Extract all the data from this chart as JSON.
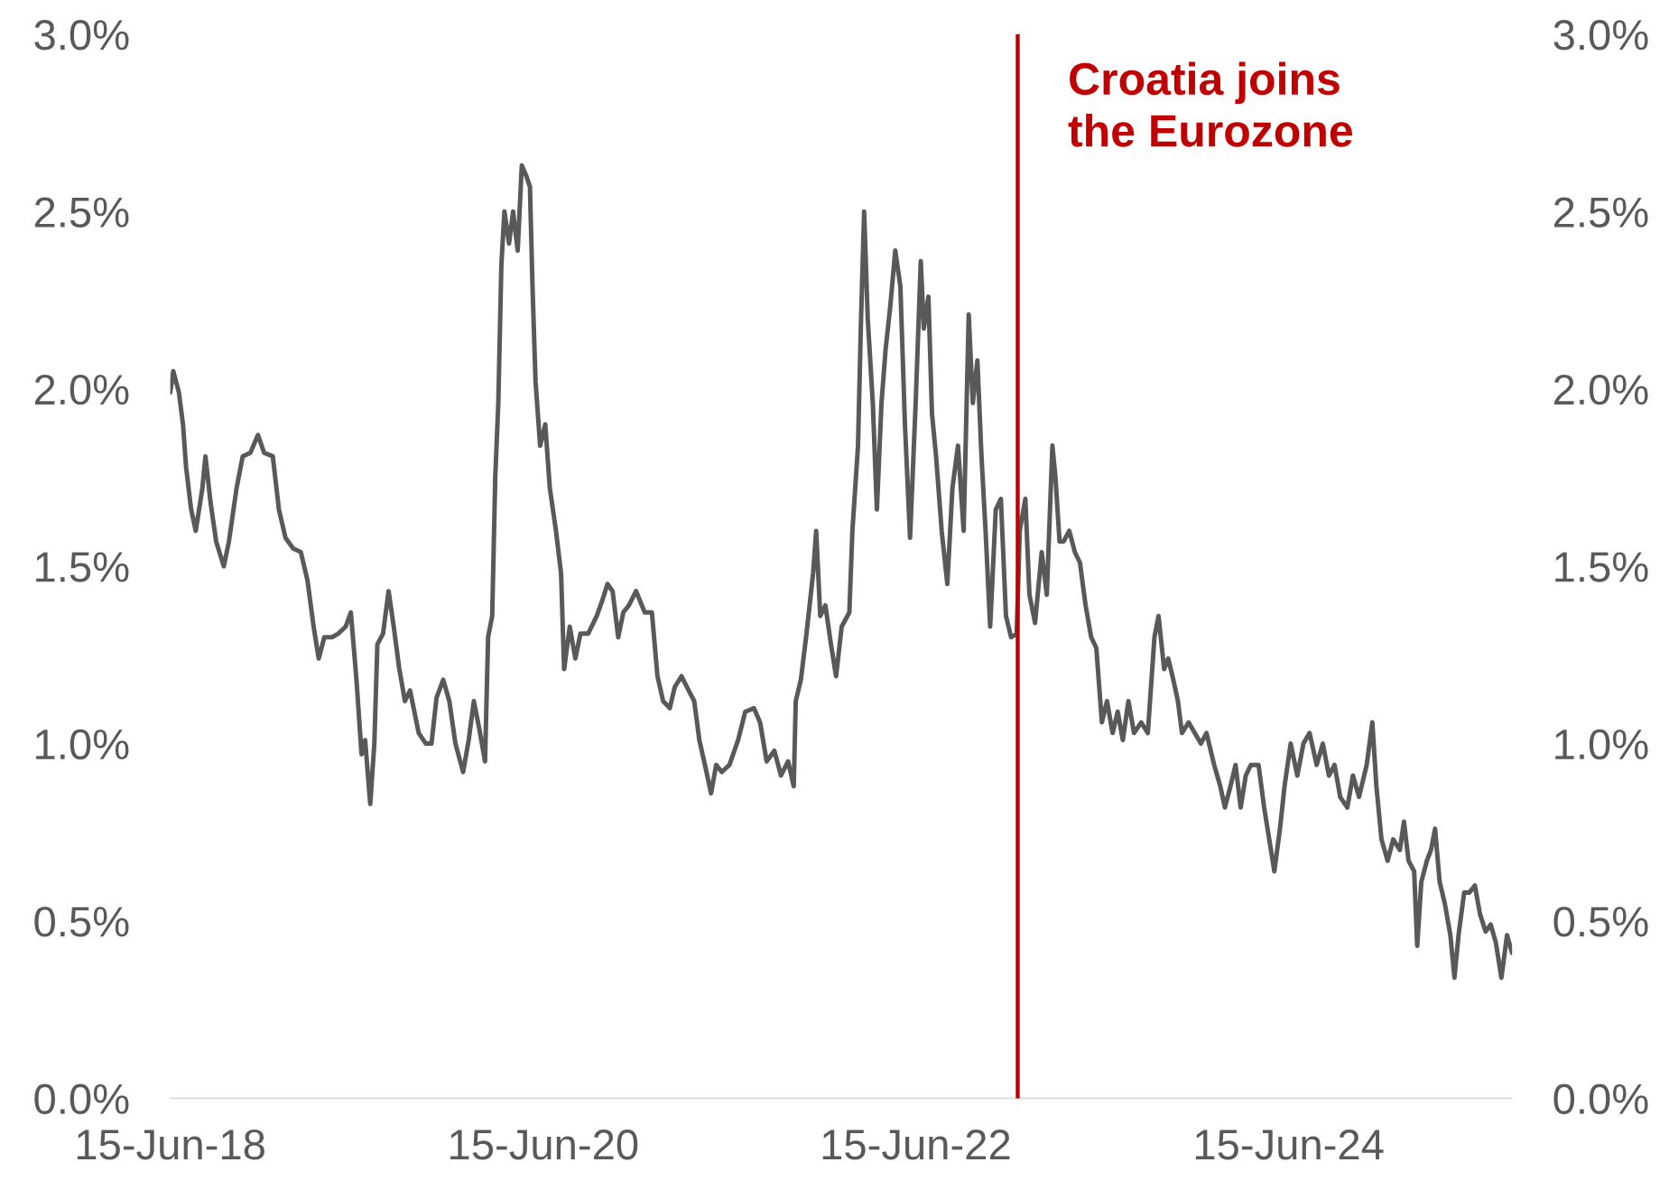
{
  "chart_data": {
    "type": "line",
    "x": [
      "2018-06-15",
      "2018-06-21",
      "2018-07-02",
      "2018-07-10",
      "2018-07-16",
      "2018-07-26",
      "2018-08-04",
      "2018-08-17",
      "2018-08-23",
      "2018-09-02",
      "2018-09-13",
      "2018-09-28",
      "2018-10-08",
      "2018-10-23",
      "2018-11-04",
      "2018-11-19",
      "2018-12-04",
      "2018-12-16",
      "2019-01-02",
      "2019-01-14",
      "2019-01-27",
      "2019-02-11",
      "2019-02-26",
      "2019-03-11",
      "2019-03-23",
      "2019-04-02",
      "2019-04-13",
      "2019-04-28",
      "2019-05-10",
      "2019-05-25",
      "2019-06-04",
      "2019-06-15",
      "2019-06-25",
      "2019-07-02",
      "2019-07-12",
      "2019-07-20",
      "2019-07-26",
      "2019-08-06",
      "2019-08-17",
      "2019-08-27",
      "2019-09-07",
      "2019-09-18",
      "2019-09-28",
      "2019-10-15",
      "2019-10-29",
      "2019-11-09",
      "2019-11-19",
      "2019-12-02",
      "2019-12-14",
      "2019-12-26",
      "2020-01-10",
      "2020-01-21",
      "2020-01-31",
      "2020-02-11",
      "2020-02-22",
      "2020-02-28",
      "2020-03-07",
      "2020-03-13",
      "2020-03-19",
      "2020-03-25",
      "2020-03-31",
      "2020-04-09",
      "2020-04-17",
      "2020-04-26",
      "2020-05-04",
      "2020-05-13",
      "2020-05-20",
      "2020-05-25",
      "2020-05-31",
      "2020-06-09",
      "2020-06-19",
      "2020-06-28",
      "2020-07-10",
      "2020-07-20",
      "2020-07-26",
      "2020-08-06",
      "2020-08-17",
      "2020-08-27",
      "2020-09-11",
      "2020-09-28",
      "2020-10-08",
      "2020-10-19",
      "2020-10-29",
      "2020-11-09",
      "2020-11-19",
      "2020-11-30",
      "2020-12-14",
      "2020-12-31",
      "2021-01-14",
      "2021-01-25",
      "2021-02-05",
      "2021-02-18",
      "2021-02-28",
      "2021-03-13",
      "2021-03-27",
      "2021-04-07",
      "2021-04-17",
      "2021-04-28",
      "2021-05-10",
      "2021-05-20",
      "2021-05-31",
      "2021-06-15",
      "2021-07-02",
      "2021-07-16",
      "2021-08-02",
      "2021-08-14",
      "2021-08-27",
      "2021-09-11",
      "2021-09-24",
      "2021-10-08",
      "2021-10-19",
      "2021-10-23",
      "2021-11-02",
      "2021-11-13",
      "2021-11-26",
      "2021-12-02",
      "2021-12-10",
      "2021-12-20",
      "2021-12-31",
      "2022-01-10",
      "2022-01-21",
      "2022-02-05",
      "2022-02-11",
      "2022-02-22",
      "2022-02-28",
      "2022-03-06",
      "2022-03-13",
      "2022-03-23",
      "2022-03-31",
      "2022-04-09",
      "2022-04-17",
      "2022-04-26",
      "2022-05-06",
      "2022-05-16",
      "2022-05-25",
      "2022-06-04",
      "2022-06-15",
      "2022-06-25",
      "2022-07-01",
      "2022-07-10",
      "2022-07-17",
      "2022-07-25",
      "2022-08-05",
      "2022-08-16",
      "2022-08-26",
      "2022-09-06",
      "2022-09-17",
      "2022-09-27",
      "2022-10-05",
      "2022-10-14",
      "2022-10-22",
      "2022-10-30",
      "2022-11-08",
      "2022-11-19",
      "2022-11-29",
      "2022-12-09",
      "2022-12-19",
      "2022-12-30",
      "2023-01-05",
      "2023-01-16",
      "2023-01-24",
      "2023-02-04",
      "2023-02-17",
      "2023-02-27",
      "2023-03-10",
      "2023-03-16",
      "2023-03-24",
      "2023-04-01",
      "2023-04-12",
      "2023-04-23",
      "2023-05-03",
      "2023-05-14",
      "2023-05-25",
      "2023-06-04",
      "2023-06-15",
      "2023-06-25",
      "2023-07-06",
      "2023-07-16",
      "2023-07-26",
      "2023-08-06",
      "2023-08-17",
      "2023-08-31",
      "2023-09-13",
      "2023-09-26",
      "2023-10-04",
      "2023-10-15",
      "2023-10-23",
      "2023-11-02",
      "2023-11-11",
      "2023-11-19",
      "2023-12-02",
      "2023-12-14",
      "2023-12-26",
      "2024-01-06",
      "2024-01-21",
      "2024-02-02",
      "2024-02-11",
      "2024-02-22",
      "2024-03-03",
      "2024-03-13",
      "2024-03-23",
      "2024-04-02",
      "2024-04-17",
      "2024-04-28",
      "2024-05-08",
      "2024-05-18",
      "2024-05-29",
      "2024-06-07",
      "2024-06-19",
      "2024-07-02",
      "2024-07-14",
      "2024-07-26",
      "2024-08-09",
      "2024-08-21",
      "2024-09-02",
      "2024-09-13",
      "2024-09-24",
      "2024-10-08",
      "2024-10-19",
      "2024-10-31",
      "2024-11-15",
      "2024-11-26",
      "2024-12-04",
      "2024-12-14",
      "2024-12-26",
      "2025-01-06",
      "2025-01-19",
      "2025-01-27",
      "2025-02-05",
      "2025-02-16",
      "2025-02-22",
      "2025-03-02",
      "2025-03-13",
      "2025-03-21",
      "2025-03-29",
      "2025-04-07",
      "2025-04-17",
      "2025-04-28",
      "2025-05-06",
      "2025-05-14",
      "2025-05-25",
      "2025-06-04",
      "2025-06-15",
      "2025-06-25",
      "2025-07-06",
      "2025-07-16",
      "2025-07-26",
      "2025-08-06",
      "2025-08-17",
      "2025-08-27"
    ],
    "series": [
      {
        "color": "#595959",
        "values": [
          1.99,
          2.05,
          1.99,
          1.9,
          1.78,
          1.66,
          1.6,
          1.72,
          1.81,
          1.68,
          1.57,
          1.5,
          1.57,
          1.72,
          1.81,
          1.82,
          1.87,
          1.82,
          1.81,
          1.66,
          1.58,
          1.55,
          1.54,
          1.46,
          1.33,
          1.24,
          1.3,
          1.3,
          1.31,
          1.33,
          1.37,
          1.18,
          0.97,
          1.01,
          0.83,
          1.0,
          1.28,
          1.31,
          1.43,
          1.33,
          1.21,
          1.12,
          1.15,
          1.03,
          1.0,
          1.0,
          1.13,
          1.18,
          1.12,
          1.0,
          0.92,
          1.01,
          1.12,
          1.04,
          0.95,
          1.3,
          1.36,
          1.75,
          1.96,
          2.35,
          2.5,
          2.41,
          2.5,
          2.39,
          2.63,
          2.6,
          2.57,
          2.29,
          2.02,
          1.84,
          1.9,
          1.72,
          1.6,
          1.48,
          1.21,
          1.33,
          1.24,
          1.31,
          1.31,
          1.36,
          1.4,
          1.45,
          1.43,
          1.3,
          1.37,
          1.39,
          1.43,
          1.37,
          1.37,
          1.19,
          1.12,
          1.1,
          1.16,
          1.19,
          1.15,
          1.12,
          1.01,
          0.94,
          0.86,
          0.94,
          0.92,
          0.94,
          1.01,
          1.09,
          1.1,
          1.06,
          0.95,
          0.98,
          0.91,
          0.95,
          0.88,
          1.12,
          1.18,
          1.31,
          1.48,
          1.6,
          1.36,
          1.39,
          1.28,
          1.19,
          1.33,
          1.37,
          1.6,
          1.84,
          2.2,
          2.5,
          2.2,
          1.96,
          1.66,
          1.96,
          2.11,
          2.23,
          2.39,
          2.29,
          1.9,
          1.58,
          1.96,
          2.36,
          2.17,
          2.26,
          1.93,
          1.81,
          1.6,
          1.45,
          1.72,
          1.84,
          1.6,
          2.21,
          1.96,
          2.08,
          1.81,
          1.6,
          1.33,
          1.66,
          1.69,
          1.36,
          1.3,
          1.31,
          1.6,
          1.69,
          1.42,
          1.34,
          1.54,
          1.42,
          1.84,
          1.75,
          1.57,
          1.57,
          1.6,
          1.54,
          1.51,
          1.39,
          1.3,
          1.27,
          1.06,
          1.12,
          1.03,
          1.09,
          1.01,
          1.12,
          1.03,
          1.06,
          1.03,
          1.3,
          1.36,
          1.21,
          1.24,
          1.18,
          1.12,
          1.03,
          1.06,
          1.03,
          1.0,
          1.03,
          0.94,
          0.88,
          0.82,
          0.88,
          0.94,
          0.82,
          0.91,
          0.94,
          0.94,
          0.82,
          0.73,
          0.64,
          0.76,
          0.88,
          1.0,
          0.91,
          1.0,
          1.03,
          0.94,
          1.0,
          0.91,
          0.94,
          0.85,
          0.82,
          0.91,
          0.85,
          0.94,
          1.06,
          0.88,
          0.73,
          0.67,
          0.73,
          0.7,
          0.78,
          0.67,
          0.64,
          0.43,
          0.61,
          0.67,
          0.7,
          0.76,
          0.61,
          0.55,
          0.46,
          0.34,
          0.46,
          0.58,
          0.58,
          0.6,
          0.52,
          0.47,
          0.49,
          0.44,
          0.34,
          0.46,
          0.41
        ]
      }
    ],
    "xlim": [
      "2018-06-15",
      "2025-08-27"
    ],
    "xticks": [
      {
        "value": "2018-06-15",
        "label": "15-Jun-18"
      },
      {
        "value": "2020-06-15",
        "label": "15-Jun-20"
      },
      {
        "value": "2022-06-15",
        "label": "15-Jun-22"
      },
      {
        "value": "2024-06-15",
        "label": "15-Jun-24"
      }
    ],
    "ylim": [
      0,
      3
    ],
    "yticks": [
      {
        "value": 0,
        "label": "0.0%"
      },
      {
        "value": 0.5,
        "label": "0.5%"
      },
      {
        "value": 1,
        "label": "1.0%"
      },
      {
        "value": 1.5,
        "label": "1.5%"
      },
      {
        "value": 2,
        "label": "2.0%"
      },
      {
        "value": 2.5,
        "label": "2.5%"
      },
      {
        "value": 3,
        "label": "3.0%"
      }
    ],
    "y2lim": [
      0,
      3
    ],
    "y2ticks": [
      {
        "value": 0,
        "label": "0.0%"
      },
      {
        "value": 0.5,
        "label": "0.5%"
      },
      {
        "value": 1,
        "label": "1.0%"
      },
      {
        "value": 1.5,
        "label": "1.5%"
      },
      {
        "value": 2,
        "label": "2.0%"
      },
      {
        "value": 2.5,
        "label": "2.5%"
      },
      {
        "value": 3,
        "label": "3.0%"
      }
    ],
    "ref_lines": [
      {
        "axis": "x",
        "value": "2023-01-01",
        "label": "Croatia joins\nthe Eurozone",
        "color": "#c00000",
        "line_style": "solid"
      }
    ],
    "grid": false,
    "line_style": "solid"
  }
}
